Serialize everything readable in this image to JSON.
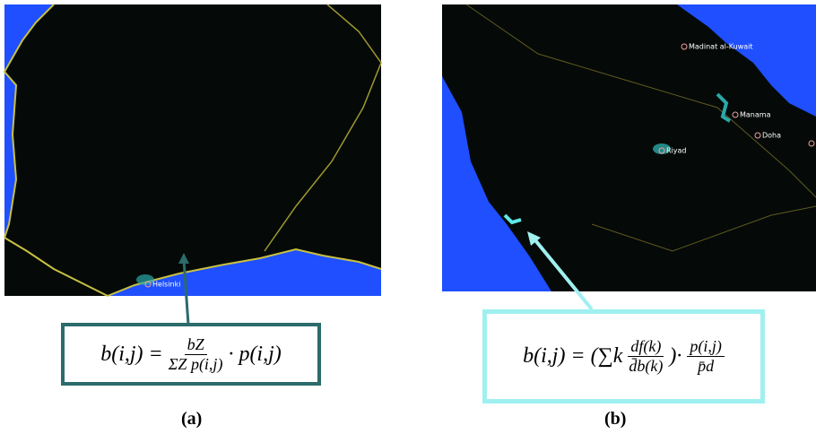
{
  "panel_a": {
    "cities": [
      "Helsinki"
    ],
    "formula": {
      "lhs": "b(i,j) =",
      "numerator": "bZ",
      "denominator": "ΣZ p(i,j)",
      "rhs": "· p(i,j)"
    },
    "caption": "(a)"
  },
  "panel_b": {
    "cities": [
      "Madinat al-Kuwait",
      "Manama",
      "Doha",
      "Riyad"
    ],
    "formula": {
      "lhs": "b(i,j) =",
      "open": "(∑k",
      "num1": "df(k)",
      "den1": "d̄b(k)",
      "close": ")·",
      "num2": "p(i,j)",
      "den2": "p̄d"
    },
    "caption": "(b)"
  }
}
